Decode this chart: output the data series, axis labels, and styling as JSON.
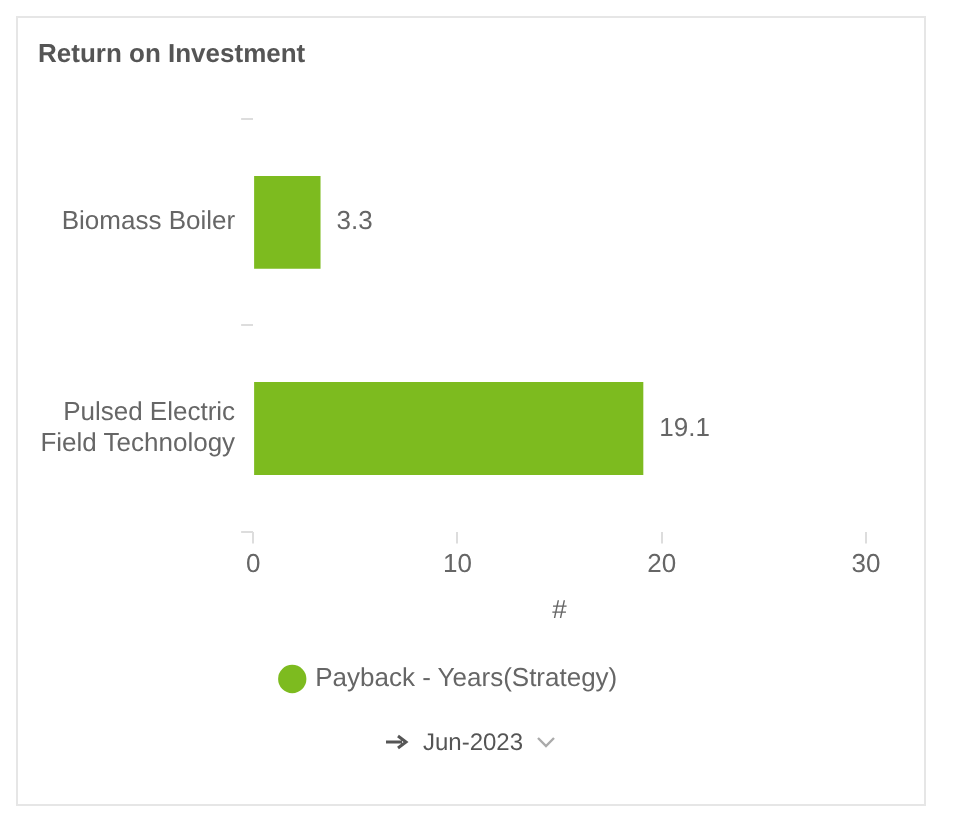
{
  "chart_data": {
    "type": "bar",
    "orientation": "horizontal",
    "title": "Return on Investment",
    "categories": [
      "Biomass Boiler",
      "Pulsed Electric Field Technology"
    ],
    "series": [
      {
        "name": "Payback - Years(Strategy)",
        "color": "#7dbb1f",
        "values": [
          3.3,
          19.1
        ]
      }
    ],
    "xlabel": "#",
    "xlim": [
      0,
      30
    ],
    "xticks": [
      0,
      10,
      20,
      30
    ],
    "grid": false,
    "legend": "bottom",
    "data_labels": true,
    "annotations": [
      "Jun-2023"
    ]
  }
}
